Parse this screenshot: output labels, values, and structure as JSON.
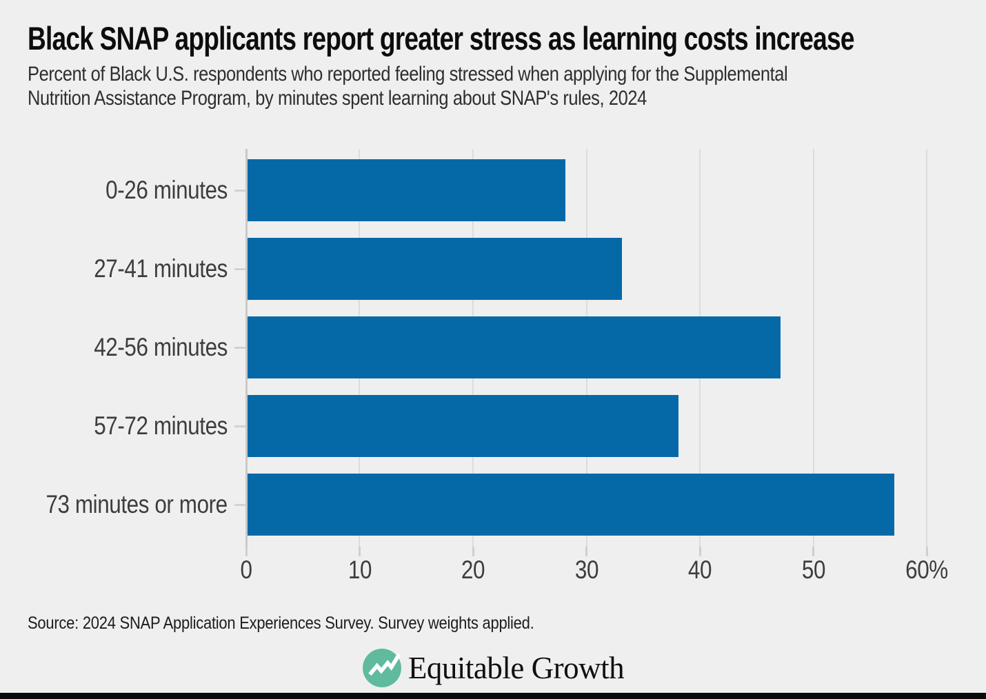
{
  "header": {
    "title": "Black SNAP applicants report greater stress as learning costs increase",
    "subtitle": "Percent of Black U.S. respondents who reported feeling stressed when applying for the Supplemental Nutrition Assistance Program, by minutes spent learning about SNAP's rules, 2024"
  },
  "chart_data": {
    "type": "bar",
    "orientation": "horizontal",
    "title": "Black SNAP applicants report greater stress as learning costs increase",
    "categories": [
      "0-26 minutes",
      "27-41 minutes",
      "42-56 minutes",
      "57-72 minutes",
      "73 minutes or more"
    ],
    "values": [
      28,
      33,
      47,
      38,
      57
    ],
    "unit": "percent",
    "xlim": [
      0,
      60
    ],
    "x_tick_values": [
      0,
      10,
      20,
      30,
      40,
      50,
      60
    ],
    "x_tick_labels": [
      "0",
      "10",
      "20",
      "30",
      "40",
      "50",
      "60%"
    ],
    "grid": true,
    "legend": "none",
    "bar_color": "#0569a8"
  },
  "footer": {
    "source": "Source: 2024 SNAP Application Experiences Survey. Survey weights applied.",
    "logo_text": "Equitable Growth"
  },
  "colors": {
    "background": "#efefef",
    "bar": "#0569a8",
    "title_text": "#0d0d0d",
    "subtitle_text": "#2e2e2e",
    "axis_text": "#3d3d3d",
    "axis_line": "#c9c9c9",
    "gridline": "#dcdcdc",
    "source_text": "#1d1d1d",
    "logo_teal": "#5fba9e",
    "footer_bar": "#0a0a0a"
  }
}
